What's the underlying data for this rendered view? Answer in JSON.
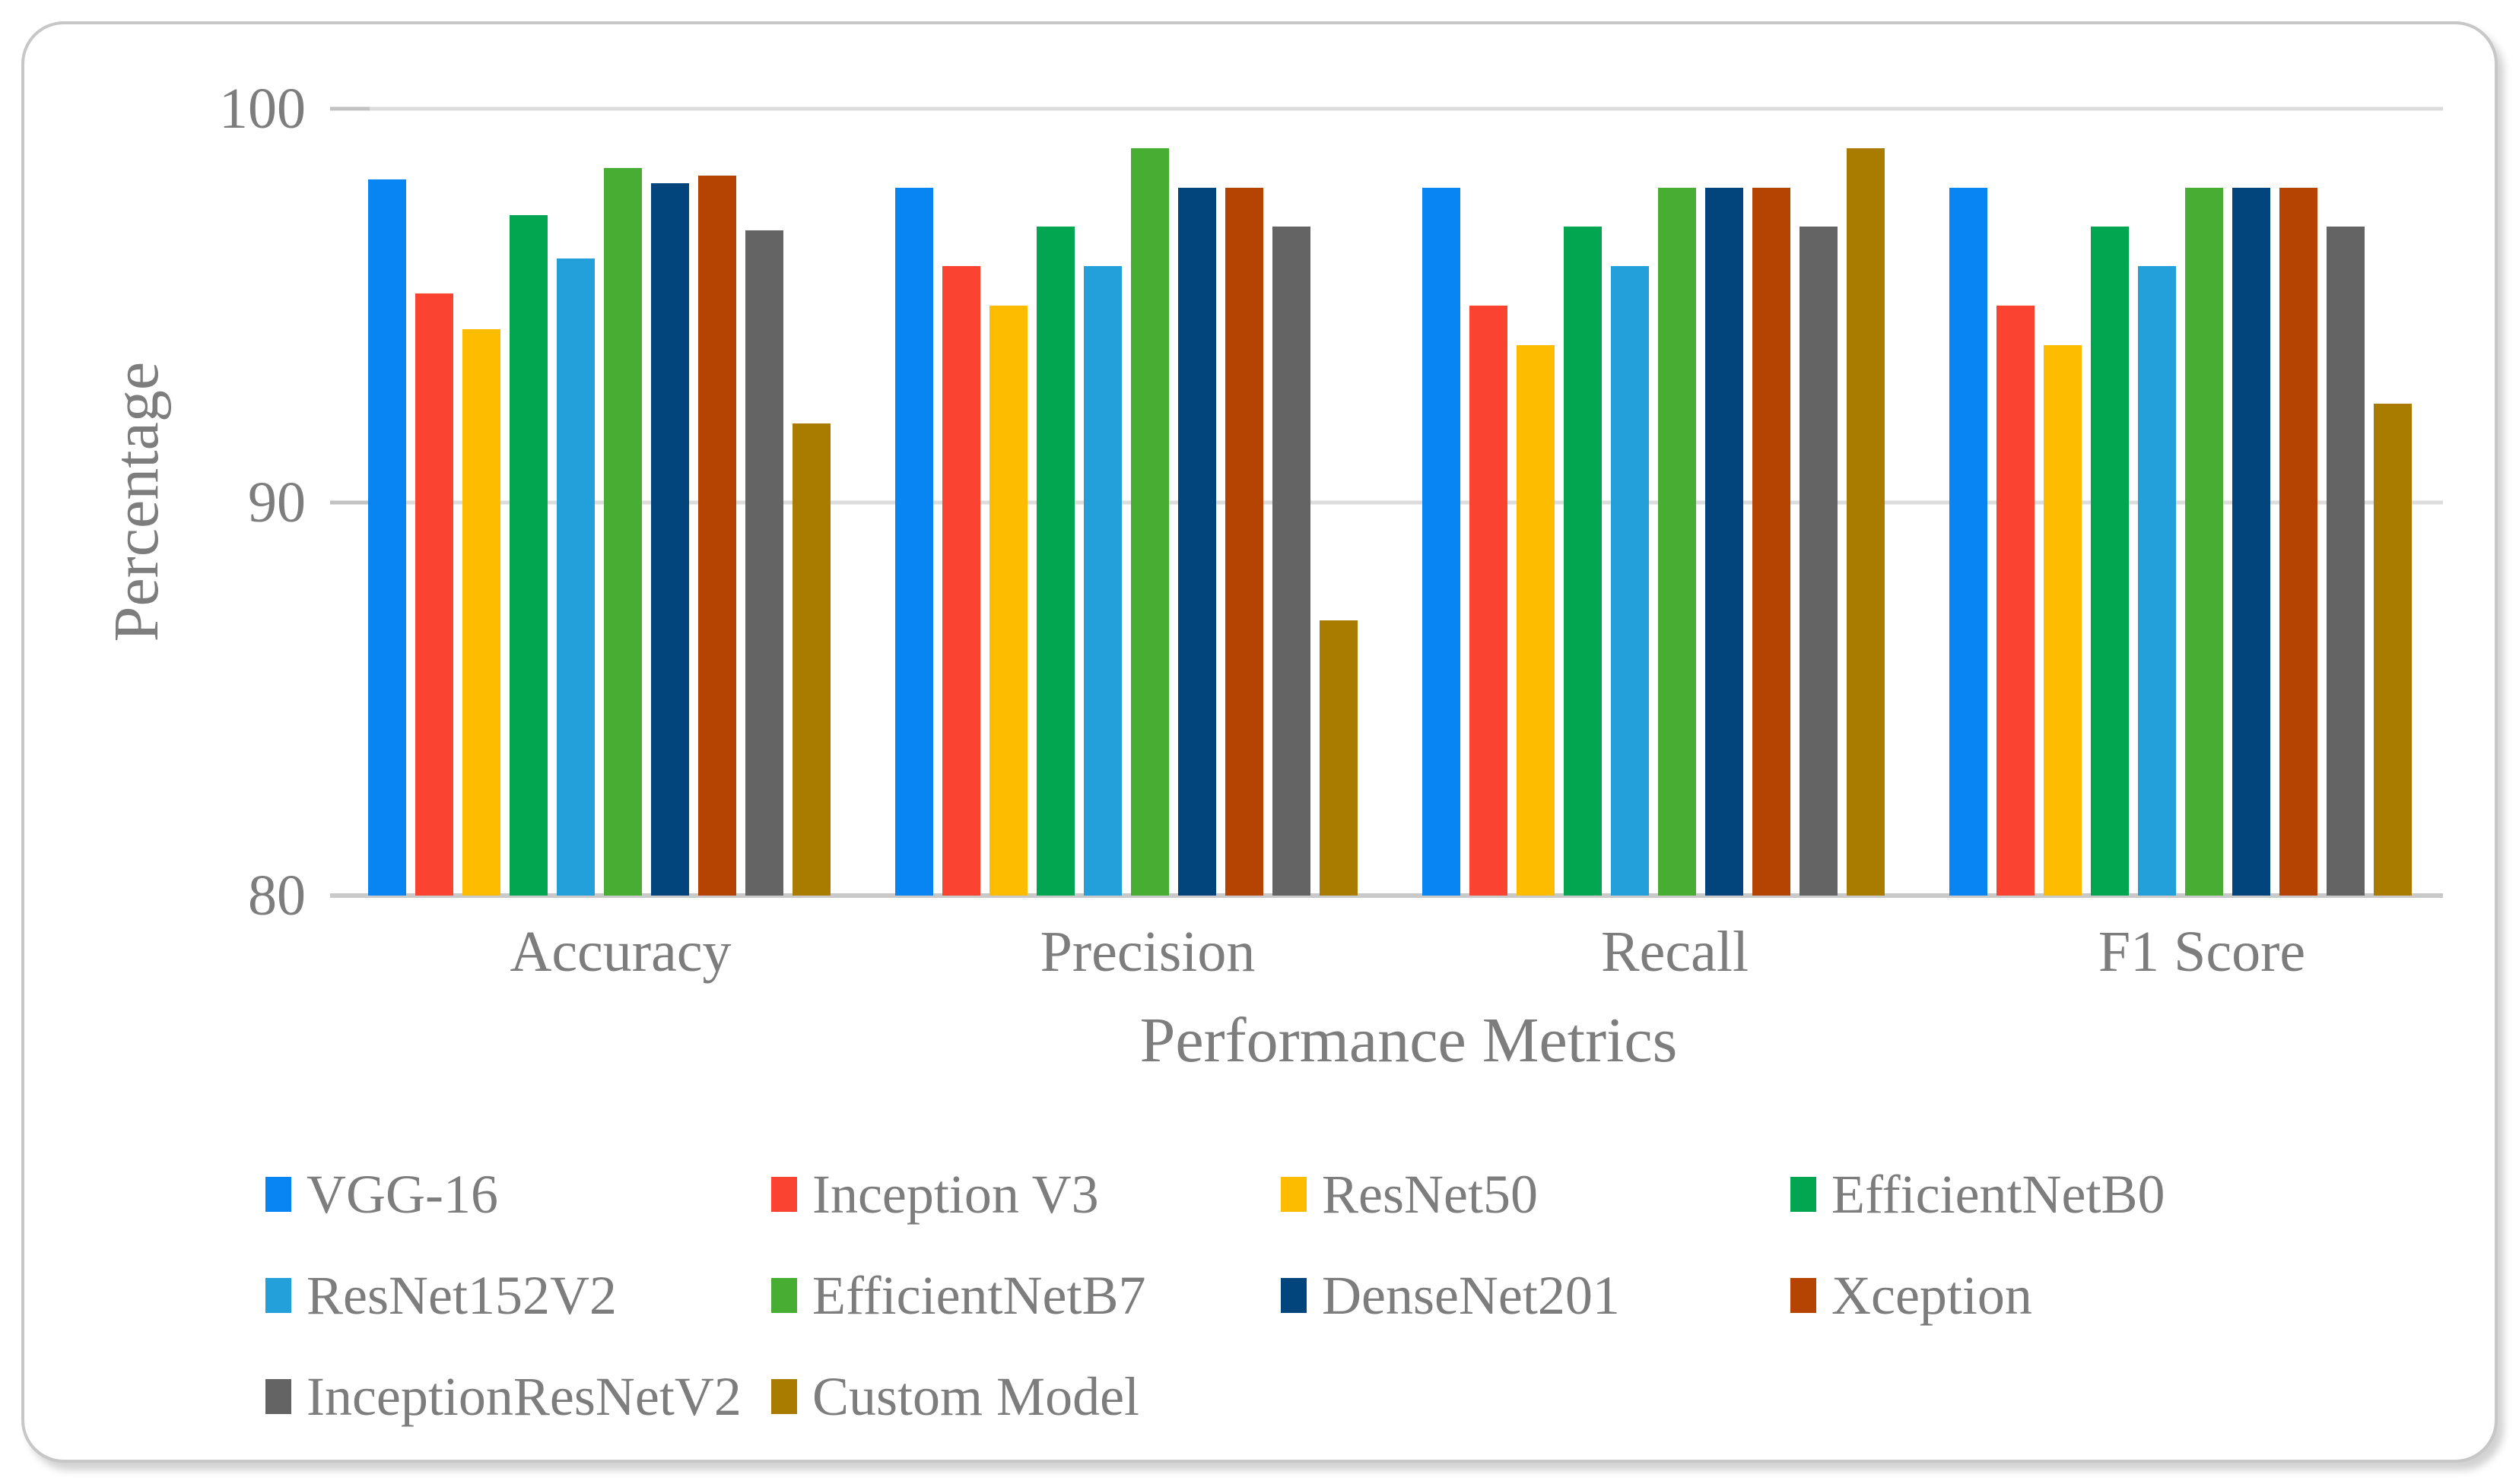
{
  "chart_data": {
    "type": "bar",
    "title": "",
    "xlabel": "Performance Metrics",
    "ylabel": "Percentage",
    "ylim": [
      80,
      100
    ],
    "yticks": [
      100,
      90,
      80
    ],
    "grid": "horizontal",
    "legend_position": "bottom",
    "categories": [
      "Accuracy",
      "Precision",
      "Recall",
      "F1 Score"
    ],
    "series": [
      {
        "name": "VGG-16",
        "color": "#0885F2",
        "values": [
          98.2,
          98.0,
          98.0,
          98.0
        ]
      },
      {
        "name": "Inception V3",
        "color": "#FB4332",
        "values": [
          95.3,
          96.0,
          95.0,
          95.0
        ]
      },
      {
        "name": "ResNet50",
        "color": "#FEBC01",
        "values": [
          94.4,
          95.0,
          94.0,
          94.0
        ]
      },
      {
        "name": "EfficientNetB0",
        "color": "#02A650",
        "values": [
          97.3,
          97.0,
          97.0,
          97.0
        ]
      },
      {
        "name": "ResNet152V2",
        "color": "#239FD9",
        "values": [
          96.2,
          96.0,
          96.0,
          96.0
        ]
      },
      {
        "name": "EfficientNetB7",
        "color": "#48AD33",
        "values": [
          98.5,
          99.0,
          98.0,
          98.0
        ]
      },
      {
        "name": "DenseNet201",
        "color": "#02457C",
        "values": [
          98.1,
          98.0,
          98.0,
          98.0
        ]
      },
      {
        "name": "Xception",
        "color": "#B54301",
        "values": [
          98.3,
          98.0,
          98.0,
          98.0
        ]
      },
      {
        "name": "InceptionResNetV2",
        "color": "#646464",
        "values": [
          96.9,
          97.0,
          97.0,
          97.0
        ]
      },
      {
        "name": "Custom Model",
        "color": "#A97C00",
        "values": [
          92.0,
          87.0,
          99.0,
          92.5
        ]
      }
    ]
  },
  "layout_colors": {
    "gridline": "#dcdcdc",
    "axis_line": "#c9c9c9",
    "text": "#7d7d7d",
    "card_border": "#c7c7c7"
  }
}
